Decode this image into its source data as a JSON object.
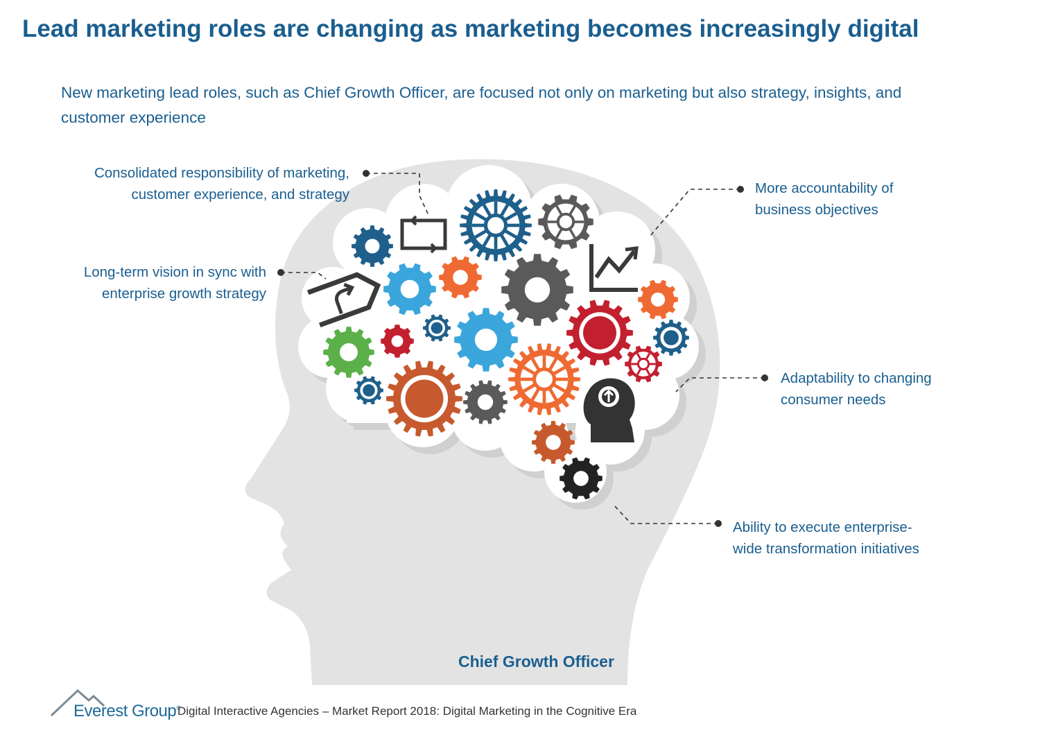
{
  "title": "Lead marketing roles are changing as marketing becomes increasingly digital",
  "subtitle": "New marketing lead roles, such as Chief Growth Officer, are focused not only on marketing but also strategy, insights, and customer experience",
  "callouts": [
    {
      "lines": [
        "Consolidated responsibility of marketing,",
        "customer experience, and strategy"
      ]
    },
    {
      "lines": [
        "Long-term vision in sync with",
        "enterprise growth strategy"
      ]
    },
    {
      "lines": [
        "More accountability of",
        "business objectives"
      ]
    },
    {
      "lines": [
        "Adaptability to changing",
        "consumer needs"
      ]
    },
    {
      "lines": [
        "Ability to execute enterprise-",
        "wide transformation initiatives"
      ]
    }
  ],
  "figure_label": "Chief Growth Officer",
  "footer": {
    "logo_text": "Everest Group",
    "logo_mark": "®",
    "report": "Digital Interactive Agencies – Market Report 2018: Digital Marketing in the Cognitive Era"
  },
  "colors": {
    "title": "#1a5e8f",
    "head": "#e3e3e3",
    "brain": "#ffffff",
    "gear_blue_dark": "#1f5f8b",
    "gear_blue_light": "#3aa6dc",
    "gear_grey": "#5a5a5a",
    "gear_orange": "#ef6a32",
    "gear_red": "#c3202f",
    "gear_green": "#5bb04a",
    "gear_rust": "#c65a2e",
    "gear_black": "#222222"
  },
  "icons": [
    "refresh-arrows-icon",
    "direction-sign-icon",
    "growth-chart-icon",
    "idea-head-icon"
  ]
}
